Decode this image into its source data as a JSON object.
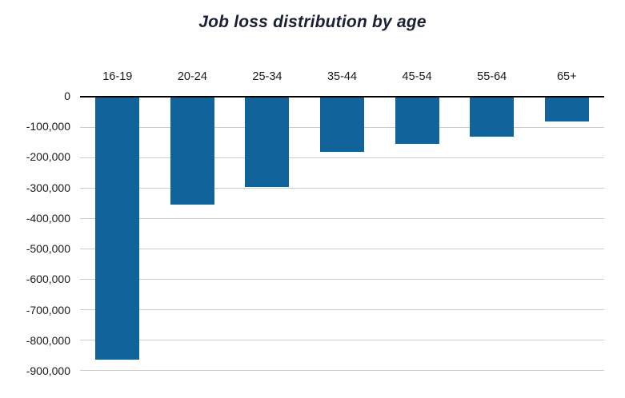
{
  "chart_data": {
    "type": "bar",
    "title": "Job loss distribution by age",
    "xlabel": "",
    "ylabel": "",
    "categories": [
      "16-19",
      "20-24",
      "25-34",
      "35-44",
      "45-54",
      "55-64",
      "65+"
    ],
    "values": [
      -862000,
      -352000,
      -295000,
      -178000,
      -152000,
      -130000,
      -80000
    ],
    "ylim": [
      -900000,
      0
    ],
    "y_tick_step": 100000,
    "y_tick_labels": [
      "0",
      "-100,000",
      "-200,000",
      "-300,000",
      "-400,000",
      "-500,000",
      "-600,000",
      "-700,000",
      "-800,000",
      "-900,000"
    ],
    "grid": true,
    "legend": false,
    "bar_color": "#10639b",
    "zero_line_color": "#000000",
    "gridline_color": "#cccccc",
    "orientation": "vertical-negative",
    "category_label_position": "above-zero-line"
  }
}
